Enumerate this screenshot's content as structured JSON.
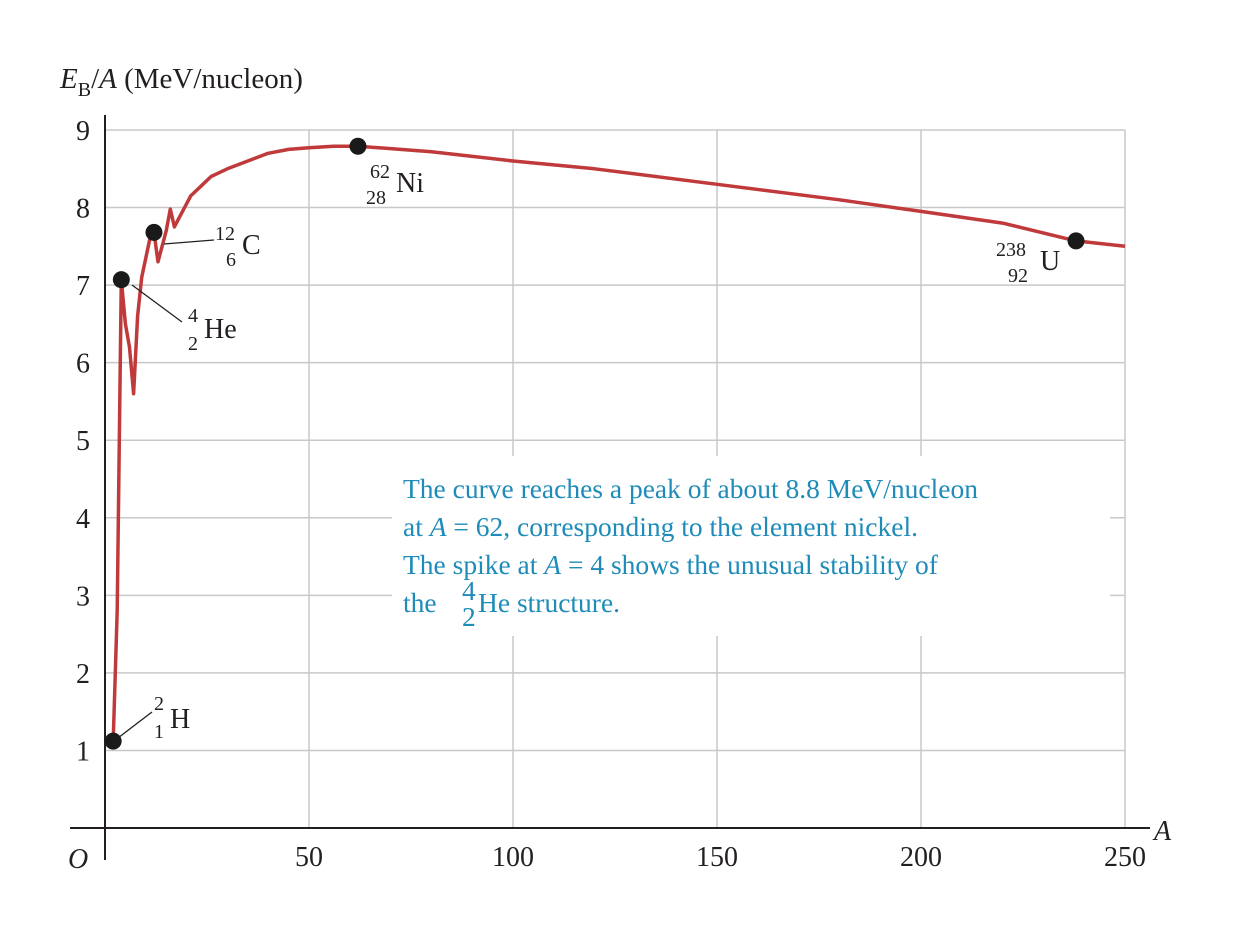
{
  "chart_data": {
    "type": "line",
    "title": "",
    "ylabel_parts": {
      "E": "E",
      "sub": "B",
      "slash": "/",
      "A": "A",
      "units": " (MeV/nucleon)"
    },
    "xlabel": "A",
    "origin_label": "O",
    "xlim": [
      0,
      250
    ],
    "ylim": [
      0,
      9
    ],
    "grid": true,
    "x_ticks": [
      "50",
      "100",
      "150",
      "200",
      "250"
    ],
    "y_ticks": [
      "1",
      "2",
      "3",
      "4",
      "5",
      "6",
      "7",
      "8",
      "9"
    ],
    "series": [
      {
        "color": "#c0393b",
        "x": [
          2,
          3,
          4,
          5,
          6,
          7,
          8,
          9,
          10,
          11,
          12,
          13,
          14,
          15,
          16,
          17,
          18,
          19,
          20,
          21,
          22,
          24,
          26,
          28,
          30,
          35,
          40,
          45,
          50,
          56,
          62,
          70,
          80,
          100,
          120,
          150,
          180,
          200,
          220,
          238,
          250
        ],
        "y": [
          1.12,
          2.8,
          7.07,
          6.5,
          6.2,
          5.6,
          6.6,
          7.1,
          7.35,
          7.6,
          7.68,
          7.3,
          7.5,
          7.7,
          7.98,
          7.75,
          7.85,
          7.95,
          8.05,
          8.15,
          8.2,
          8.3,
          8.4,
          8.45,
          8.5,
          8.6,
          8.7,
          8.75,
          8.77,
          8.79,
          8.79,
          8.76,
          8.72,
          8.6,
          8.5,
          8.3,
          8.1,
          7.95,
          7.8,
          7.57,
          7.5
        ]
      }
    ],
    "points": [
      {
        "x": 2,
        "y": 1.12,
        "sym": "H",
        "mass": "2",
        "z": "1"
      },
      {
        "x": 4,
        "y": 7.07,
        "sym": "He",
        "mass": "4",
        "z": "2"
      },
      {
        "x": 12,
        "y": 7.68,
        "sym": "C",
        "mass": "12",
        "z": "6"
      },
      {
        "x": 62,
        "y": 8.79,
        "sym": "Ni",
        "mass": "62",
        "z": "28"
      },
      {
        "x": 238,
        "y": 7.57,
        "sym": "U",
        "mass": "238",
        "z": "92"
      }
    ],
    "annotation": {
      "line1": "The curve reaches a peak of about 8.8 MeV/nucleon",
      "line2_a": "at ",
      "line2_A": "A",
      "line2_b": " = 62, corresponding to the element nickel.",
      "line3_a": "The spike at ",
      "line3_A": "A",
      "line3_b": " = 4 shows the unusual stability of",
      "line4_a": "the ",
      "line4_mass": "4",
      "line4_z": "2",
      "line4_b": "He structure."
    }
  }
}
